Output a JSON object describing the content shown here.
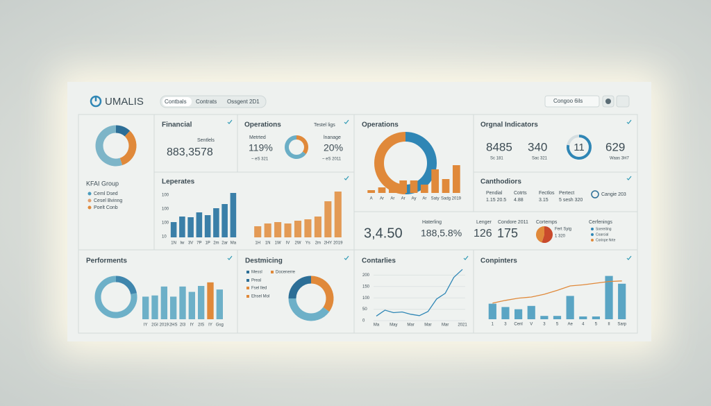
{
  "header": {
    "logo": "UMALIS",
    "tabs": [
      "Contbals",
      "Contrats",
      "Ossgent 2D1"
    ],
    "search": "Congoo 6ils"
  },
  "group": {
    "title": "KFAI Group",
    "donut": {
      "values": [
        12,
        33,
        55
      ],
      "colors": [
        "#2c6e96",
        "#e0893a",
        "#7db5c8"
      ]
    },
    "legend": [
      {
        "label": "Ceml Dsed",
        "color": "#4b9bbd"
      },
      {
        "label": "Cesel Bvinng",
        "color": "#e0a070"
      },
      {
        "label": "Poelt Conb",
        "color": "#e0893a"
      }
    ]
  },
  "financial": {
    "title": "Financial",
    "label": "Sentlels",
    "value": "883,3578"
  },
  "operations": {
    "title": "Operations",
    "link": "Testel ligs",
    "left": {
      "label": "Metrted",
      "value": "119%",
      "note": "~ eS 321"
    },
    "right": {
      "label": "lnanage",
      "value": "20%",
      "note": "~ eS 2011"
    },
    "donut": {
      "values": [
        35,
        65
      ],
      "colors": [
        "#e0893a",
        "#6aaec6"
      ]
    }
  },
  "operations_chart": {
    "title": "Operations",
    "ring": {
      "values": [
        50,
        50
      ],
      "colors": [
        "#2f86b5",
        "#e0893a"
      ]
    },
    "bars": {
      "categories": [
        "A",
        "Ar",
        "Ar",
        "Ar",
        "Ay",
        "Ar",
        "Saty",
        "Sadg",
        "2019"
      ],
      "values": [
        4,
        8,
        6,
        18,
        18,
        12,
        34,
        20,
        40
      ],
      "color": "#e0893a",
      "ylim": [
        0,
        60
      ]
    }
  },
  "indicators": {
    "title": "Orgnal Indicators",
    "items": [
      {
        "value": "8485",
        "note": "Sc 181"
      },
      {
        "value": "340",
        "note": "Sac 321"
      },
      {
        "value": "629",
        "note": "Waas 3H7"
      }
    ],
    "ring": {
      "label": "11",
      "values": [
        78,
        22
      ],
      "colors": [
        "#2f86b5",
        "#d4dde0"
      ]
    }
  },
  "leperates": {
    "title": "Leperates",
    "axis_labels": [
      "100",
      "100",
      "100",
      "10"
    ],
    "blue": {
      "categories": [
        "1N",
        "Iw",
        "3V",
        "7P",
        "1P",
        "2m",
        "2ar",
        "Ma"
      ],
      "values": [
        22,
        30,
        29,
        36,
        32,
        42,
        48,
        64
      ],
      "color": "#3a7fa8",
      "ylim": [
        0,
        70
      ]
    },
    "orange": {
      "categories": [
        "1H",
        "1N",
        "1W",
        "IV",
        "2W",
        "Ys",
        "2m",
        "2HY",
        "2019"
      ],
      "values": [
        16,
        20,
        22,
        20,
        24,
        26,
        30,
        52,
        66
      ],
      "color": "#e39a55",
      "ylim": [
        0,
        70
      ]
    }
  },
  "carthodiors": {
    "title": "Canthodiors",
    "items": [
      {
        "label": "Pendial",
        "value": "1.15 20.5"
      },
      {
        "label": "Cotrts",
        "value": "4.88"
      },
      {
        "label": "Fectlos",
        "value": "3.15"
      },
      {
        "label": "Pertect",
        "value": "5 sesh 320"
      }
    ],
    "badge": "Cangie 203"
  },
  "kpis": {
    "main": "3,4.50",
    "items": [
      {
        "label": "Haterling",
        "value": "188,5.8%"
      },
      {
        "label": "Lenger",
        "value": "126"
      },
      {
        "label": "Condore 2011",
        "value": "175"
      }
    ],
    "pie": {
      "title": "Cortemps",
      "values": [
        55,
        45
      ],
      "colors": [
        "#c94a2c",
        "#e0893a"
      ],
      "labels": [
        "Fert Syig",
        "1 320"
      ]
    },
    "legend": {
      "title": "Cerfenings",
      "items": [
        {
          "label": "Soereiting",
          "color": "#2f86b5"
        },
        {
          "label": "Coarcial",
          "color": "#2f86b5"
        },
        {
          "label": "Corinpe Nrte",
          "color": "#e0893a"
        }
      ]
    }
  },
  "performance": {
    "title": "Performents",
    "donut": {
      "values": [
        22,
        78
      ],
      "colors": [
        "#3f86ad",
        "#6db0c8"
      ]
    },
    "bars": {
      "categories": [
        "IY",
        "2GI",
        "2019",
        "2HS",
        "2I3",
        "IY",
        "2IS",
        "IY",
        "Gsg"
      ],
      "values": [
        38,
        40,
        55,
        38,
        55,
        46,
        56,
        62,
        50
      ],
      "colors": [
        "#6db0c8",
        "#6db0c8",
        "#6db0c8",
        "#6db0c8",
        "#6db0c8",
        "#6db0c8",
        "#6db0c8",
        "#e0893a",
        "#6db0c8"
      ],
      "ylim": [
        0,
        70
      ]
    }
  },
  "distribution": {
    "title": "Destmicing",
    "legend": [
      {
        "label": "Messl",
        "color": "#2c6e96"
      },
      {
        "label": "Docenerre",
        "color": "#e0893a"
      },
      {
        "label": "Preal",
        "color": "#2c6e96"
      },
      {
        "label": "Fsel lled",
        "color": "#e0893a"
      },
      {
        "label": "Ehsel Mol",
        "color": "#e0893a"
      }
    ],
    "donut": {
      "values": [
        35,
        40,
        25
      ],
      "colors": [
        "#e0893a",
        "#6db0c8",
        "#2c6e96"
      ]
    }
  },
  "contarlies": {
    "title": "Contarlies",
    "categories": [
      "Ma",
      null,
      "May",
      null,
      "Mar",
      null,
      "Mar",
      null,
      "Mar",
      null,
      "2021"
    ],
    "values": [
      20,
      46,
      35,
      38,
      28,
      22,
      40,
      95,
      120,
      190,
      225
    ],
    "ylim": [
      0,
      250
    ],
    "yticks": [
      200,
      150,
      100,
      50,
      0
    ],
    "color": "#2f86b5"
  },
  "conpinters": {
    "title": "Conpinters",
    "categories": [
      "1",
      "3",
      "Cenl",
      "V",
      "3",
      "5",
      "Ae",
      "4",
      "5",
      "II",
      "Sarp"
    ],
    "bars": {
      "values": [
        28,
        22,
        18,
        24,
        6,
        6,
        42,
        5,
        5,
        78,
        64
      ],
      "color": "#5aa5c4"
    },
    "line": {
      "values": [
        29,
        34,
        38,
        40,
        45,
        52,
        60,
        62,
        65,
        68,
        69
      ],
      "color": "#e0893a"
    },
    "ylim": [
      0,
      100
    ]
  }
}
